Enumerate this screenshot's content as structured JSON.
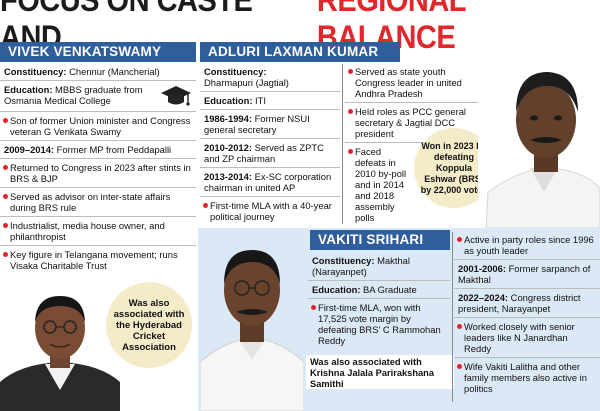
{
  "headline": {
    "part1": "FOCUS ON CASTE AND",
    "part2": "REGIONAL BALANCE"
  },
  "colors": {
    "header_blue": "#2f5e9c",
    "accent_red": "#e1262c",
    "panel_blue": "#dbe8f6",
    "circle_cream": "#f4ebc8"
  },
  "vivek": {
    "name": "VIVEK VENKATSWAMY",
    "constituency_label": "Constituency:",
    "constituency": "Chennur (Mancherial)",
    "education_label": "Education:",
    "education": "MBBS graduate from Osmania Medical College",
    "education_icon": "graduation-cap-icon",
    "bullets": [
      "Son of former Union minister and Congress veteran G Venkata Swamy",
      "Returned to Congress in 2023 after stints in BRS & BJP",
      "Served as advisor on inter-state affairs during BRS rule",
      "Industrialist, media house owner, and philanthropist",
      "Key figure in Telangana movement; runs Visaka Charitable Trust"
    ],
    "term_label": "2009–2014:",
    "term": "Former MP from Peddapalli",
    "circle": "Was also associated with the Hyderabad Cricket Association"
  },
  "adluri": {
    "name": "ADLURI LAXMAN KUMAR",
    "constituency_label": "Constituency:",
    "constituency": "Dharmapuri (Jagtial)",
    "education_label": "Education:",
    "education": "ITI",
    "t1_label": "1986-1994:",
    "t1": "Former NSUI general secretary",
    "t2_label": "2010-2012:",
    "t2": "Served as ZPTC and ZP chairman",
    "t3_label": "2013-2014:",
    "t3": "Ex-SC corporation chairman in united AP",
    "b1": "First-time MLA with a 40-year political journey",
    "b2": "Served as state youth Congress leader in united Andhra Pradesh",
    "b3": "Held roles as PCC general secretary & Jagtial DCC president",
    "b4": "Faced defeats in 2010 by-poll and in 2014 and 2018 assembly polls",
    "circle": "Won in 2023 by defeating Koppula Eshwar (BRS) by 22,000 votes"
  },
  "vakiti": {
    "name": "VAKITI SRIHARI",
    "constituency_label": "Constituency:",
    "constituency": "Makthal (Narayanpet)",
    "education_label": "Education:",
    "education": "BA Graduate",
    "b1": "First-time MLA, won with 17,525 vote margin by defeating BRS' C Rammohan Reddy",
    "note": "Was also associated with Krishna Jalala Parirakshana Samithi",
    "r1": "Active in party roles since 1996 as youth leader",
    "r2_label": "2001-2006:",
    "r2": "Former sarpanch of Makthal",
    "r3_label": "2022–2024:",
    "r3": "Congress district president, Narayanpet",
    "r4": "Worked closely with senior leaders like N Janardhan Reddy",
    "r5": "Wife Vakiti Lalitha and other family members also active in politics"
  }
}
